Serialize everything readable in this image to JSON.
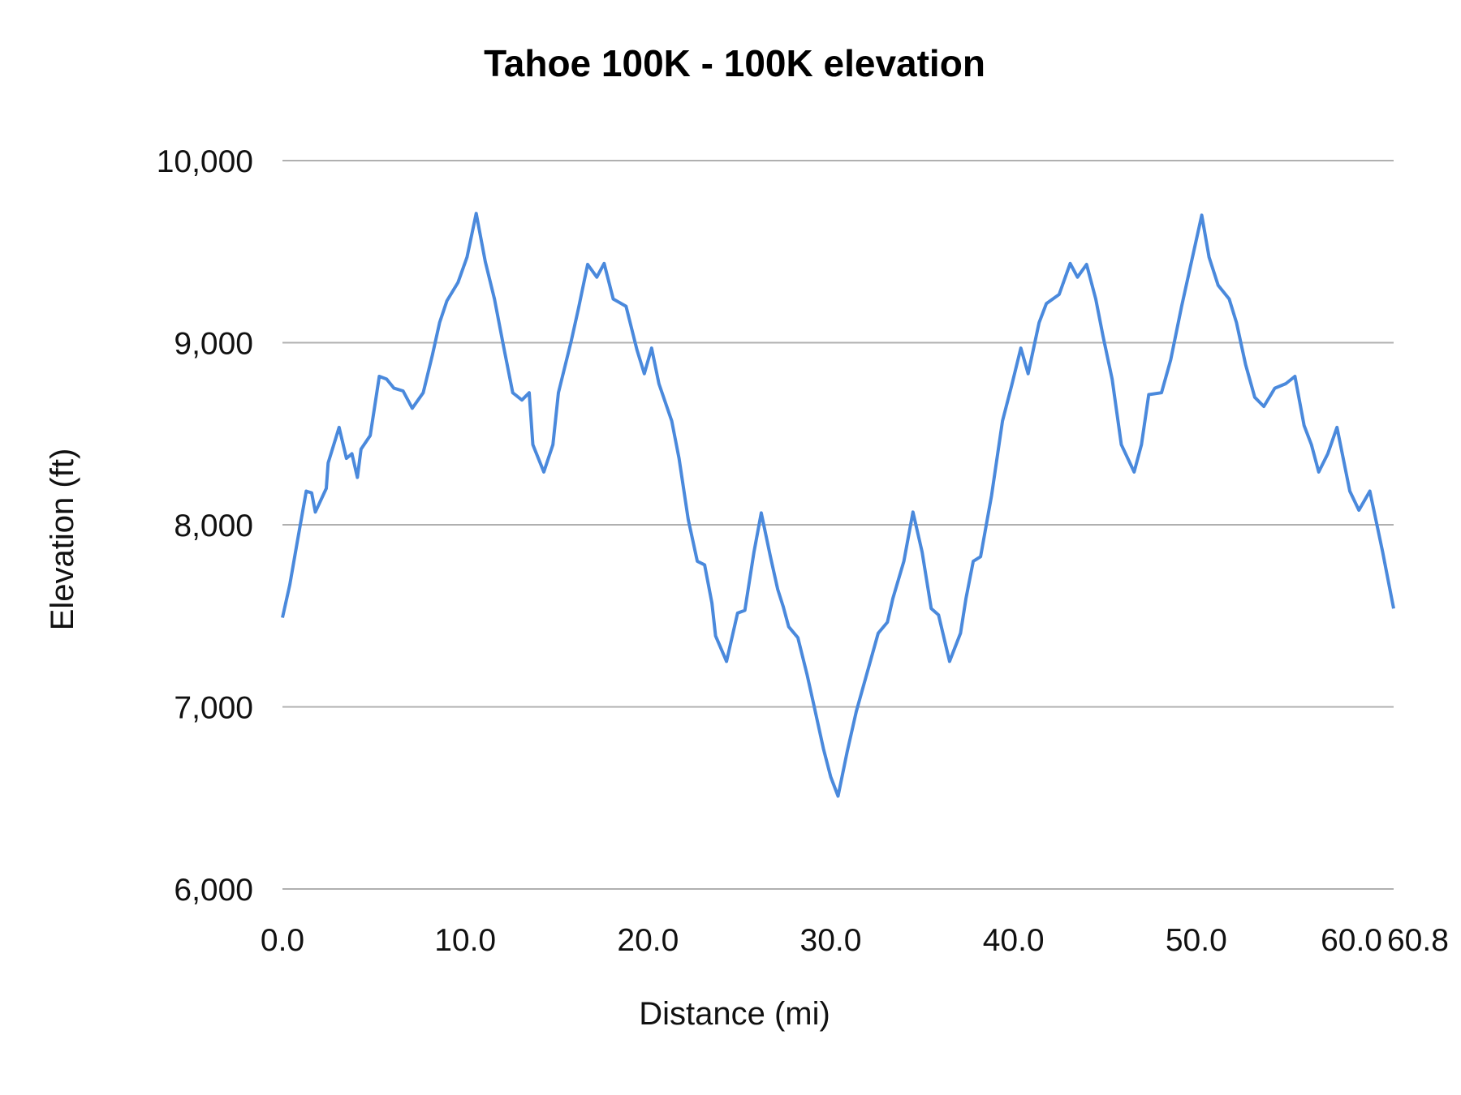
{
  "chart_data": {
    "type": "line",
    "title": "Tahoe 100K - 100K elevation",
    "xlabel": "Distance (mi)",
    "ylabel": "Elevation (ft)",
    "xlim": [
      0,
      60.8
    ],
    "ylim": [
      6000,
      10000
    ],
    "x_ticks": [
      "0.0",
      "10.0",
      "20.0",
      "30.0",
      "40.0",
      "50.0",
      "60.0",
      "60.8"
    ],
    "x_tick_values": [
      0,
      10,
      20,
      30,
      40,
      50,
      60,
      60.8
    ],
    "y_ticks": [
      "6,000",
      "7,000",
      "8,000",
      "9,000",
      "10,000"
    ],
    "y_tick_values": [
      6000,
      7000,
      8000,
      9000,
      10000
    ],
    "grid": "horizontal",
    "legend": "none",
    "line_color": "#4a89dc",
    "grid_color": "#b0b0b0",
    "series": [
      {
        "x": [
          0,
          0.4,
          0.8,
          1.3,
          1.6,
          1.8,
          2.4,
          2.5,
          3.1,
          3.5,
          3.8,
          4.1,
          4.3,
          4.8,
          5.0,
          5.3,
          5.7,
          6.1,
          6.6,
          7.1,
          7.7,
          8.2,
          8.6,
          9.0,
          9.6,
          10.1,
          10.6,
          11.1,
          11.6,
          12.1,
          12.6,
          13.1,
          13.5,
          13.7,
          14.3,
          14.8,
          15.1,
          15.8,
          16.2,
          16.7,
          17.2,
          17.6,
          18.1,
          18.8,
          19.4,
          19.8,
          20.2,
          20.6,
          21.3,
          21.7,
          22.2,
          22.7,
          23.1,
          23.5,
          23.7,
          24.3,
          24.9,
          25.3,
          25.8,
          26.2,
          26.7,
          27.1,
          27.4,
          27.7,
          28.2,
          28.7,
          29.1,
          29.6,
          30.0,
          30.4,
          30.9,
          31.4,
          31.9,
          32.6,
          33.1,
          33.4,
          34.0,
          34.5,
          35.0,
          35.5,
          35.9,
          36.5,
          37.1,
          37.4,
          37.8,
          38.2,
          38.8,
          39.4,
          39.9,
          40.4,
          40.8,
          41.4,
          41.8,
          42.5,
          43.1,
          43.5,
          44.0,
          44.5,
          44.9,
          45.4,
          45.9,
          46.6,
          47.0,
          47.4,
          48.1,
          48.6,
          49.2,
          50.3,
          50.7,
          51.2,
          51.8,
          52.2,
          52.7,
          53.2,
          53.7,
          54.3,
          54.9,
          55.4,
          55.9,
          56.3,
          56.7,
          57.2,
          57.7,
          58.4,
          58.9,
          59.5,
          60.2,
          60.8
        ],
        "y": [
          7490,
          7670,
          7900,
          8185,
          8175,
          8070,
          8200,
          8340,
          8535,
          8365,
          8390,
          8260,
          8415,
          8490,
          8620,
          8815,
          8800,
          8750,
          8735,
          8640,
          8725,
          8930,
          9110,
          9230,
          9330,
          9470,
          9710,
          9445,
          9240,
          8980,
          8725,
          8685,
          8725,
          8440,
          8290,
          8440,
          8725,
          9010,
          9190,
          9430,
          9360,
          9435,
          9240,
          9200,
          8960,
          8830,
          8970,
          8775,
          8570,
          8365,
          8030,
          7800,
          7780,
          7570,
          7390,
          7250,
          7515,
          7530,
          7850,
          8065,
          7825,
          7645,
          7550,
          7440,
          7380,
          7180,
          7000,
          6770,
          6615,
          6510,
          6755,
          6975,
          7155,
          7405,
          7465,
          7595,
          7800,
          8070,
          7850,
          7540,
          7505,
          7250,
          7405,
          7595,
          7800,
          7825,
          8160,
          8570,
          8765,
          8970,
          8830,
          9110,
          9215,
          9265,
          9435,
          9360,
          9430,
          9240,
          9035,
          8800,
          8440,
          8290,
          8440,
          8715,
          8725,
          8905,
          9200,
          9700,
          9470,
          9315,
          9240,
          9110,
          8880,
          8700,
          8650,
          8750,
          8775,
          8815,
          8545,
          8440,
          8290,
          8390,
          8535,
          8185,
          8080,
          8185,
          7850,
          7540
        ]
      }
    ]
  }
}
